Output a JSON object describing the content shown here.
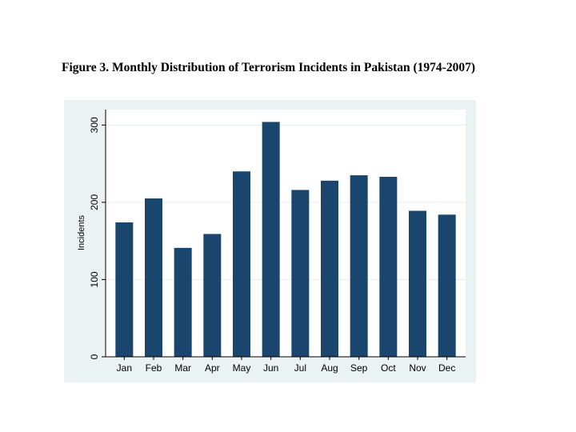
{
  "figure": {
    "title": "Figure 3. Monthly Distribution of Terrorism Incidents in Pakistan (1974-2007)"
  },
  "colors": {
    "bar": "#1a466e",
    "frame_bg": "#eaf2f3",
    "plot_bg": "#ffffff",
    "gridline": "#e6eef0",
    "axis": "#000000"
  },
  "chart_data": {
    "type": "bar",
    "title": "Figure 3. Monthly Distribution of Terrorism Incidents in Pakistan (1974-2007)",
    "xlabel": "",
    "ylabel": "Incidents",
    "categories": [
      "Jan",
      "Feb",
      "Mar",
      "Apr",
      "May",
      "Jun",
      "Jul",
      "Aug",
      "Sep",
      "Oct",
      "Nov",
      "Dec"
    ],
    "values": [
      174,
      205,
      141,
      159,
      240,
      304,
      216,
      228,
      235,
      233,
      189,
      184
    ],
    "ylim": [
      0,
      320
    ],
    "yticks": [
      0,
      100,
      200,
      300
    ],
    "ytick_labels": [
      "0",
      "100",
      "200",
      "300"
    ],
    "grid": true,
    "legend": "none"
  }
}
